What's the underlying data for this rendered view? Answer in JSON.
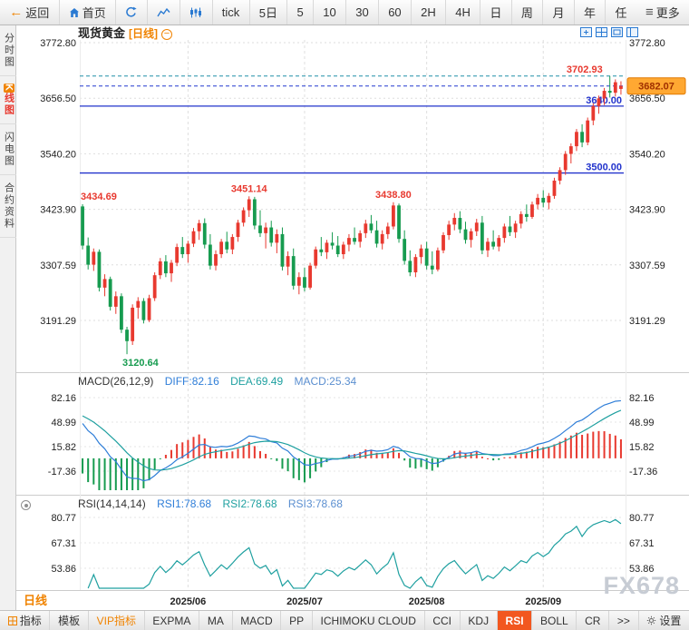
{
  "topbar": {
    "back_label": "返回",
    "home_label": "首页",
    "tick_label": "tick",
    "periods": [
      {
        "label": "5日",
        "key": "5d"
      },
      {
        "label": "5",
        "key": "5"
      },
      {
        "label": "10",
        "key": "10"
      },
      {
        "label": "30",
        "key": "30"
      },
      {
        "label": "60",
        "key": "60"
      },
      {
        "label": "2H",
        "key": "2h"
      },
      {
        "label": "4H",
        "key": "4h"
      },
      {
        "label": "日",
        "key": "day"
      },
      {
        "label": "周",
        "key": "week"
      },
      {
        "label": "月",
        "key": "month"
      },
      {
        "label": "年",
        "key": "year"
      },
      {
        "label": "任",
        "key": "custom"
      }
    ],
    "more_label": "更多"
  },
  "sidebar": {
    "items": [
      {
        "label": "分时图",
        "key": "time-chart",
        "active": false
      },
      {
        "label": "K线图",
        "key": "k-line-chart",
        "active": true
      },
      {
        "label": "闪电图",
        "key": "flash-chart",
        "active": false
      },
      {
        "label": "合约资料",
        "key": "contract-info",
        "active": false
      }
    ]
  },
  "chart_header": {
    "symbol": "现货黄金",
    "period_tag": "[日线]"
  },
  "macd_header": {
    "title": "MACD(26,12,9)",
    "diff": "DIFF:82.16",
    "dea": "DEA:69.49",
    "macd": "MACD:25.34"
  },
  "rsi_header": {
    "title": "RSI(14,14,14)",
    "rsi1": "RSI1:78.68",
    "rsi2": "RSI2:78.68",
    "rsi3": "RSI3:78.68"
  },
  "x_axis": {
    "period_tab": "日线"
  },
  "watermark": "FX678",
  "bottom_bar": {
    "items": [
      {
        "label": "指标",
        "key": "indicator",
        "style": "indicator"
      },
      {
        "label": "模板",
        "key": "template",
        "style": "normal"
      },
      {
        "label": "VIP指标",
        "key": "vip-indicator",
        "style": "vip"
      },
      {
        "label": "EXPMA",
        "key": "expma",
        "style": "normal"
      },
      {
        "label": "MA",
        "key": "ma",
        "style": "normal"
      },
      {
        "label": "MACD",
        "key": "macd",
        "style": "normal"
      },
      {
        "label": "PP",
        "key": "pp",
        "style": "normal"
      },
      {
        "label": "ICHIMOKU CLOUD",
        "key": "ichimoku-cloud",
        "style": "normal"
      },
      {
        "label": "CCI",
        "key": "cci",
        "style": "normal"
      },
      {
        "label": "KDJ",
        "key": "kdj",
        "style": "normal"
      },
      {
        "label": "RSI",
        "key": "rsi",
        "style": "active"
      },
      {
        "label": "BOLL",
        "key": "boll",
        "style": "normal"
      },
      {
        "label": "CR",
        "key": "cr",
        "style": "normal"
      },
      {
        "label": ">>",
        "key": "more-indicators",
        "style": "normal"
      },
      {
        "label": "设置",
        "key": "settings",
        "style": "settings"
      }
    ]
  },
  "colors": {
    "up": "#e8392f",
    "down": "#169b4f",
    "level_line": "#2233cc",
    "dashed_high": "#2090a8",
    "dashed_price": "#2238d0",
    "badge_bg": "#ffa832",
    "badge_border": "#e07800",
    "badge_text": "#a03000",
    "accent_orange": "#f08300",
    "diff_line": "#2f7ed8",
    "dea_line": "#1fa0a0"
  },
  "chart_data": {
    "type": "candlestick",
    "symbol": "现货黄金",
    "period": "日线",
    "y_ticks": [
      3772.8,
      3656.5,
      3540.2,
      3423.9,
      3307.59,
      3191.29
    ],
    "levels": [
      3640.0,
      3500.0
    ],
    "dashed_levels": [
      3702.93,
      3682.07
    ],
    "current_price": 3682.07,
    "month_ticks": [
      {
        "label": "2025/06",
        "index": 19
      },
      {
        "label": "2025/07",
        "index": 40
      },
      {
        "label": "2025/08",
        "index": 62
      },
      {
        "label": "2025/09",
        "index": 83
      }
    ],
    "annotations": [
      {
        "text": "3434.69",
        "index": 0,
        "price": 3434.69,
        "pos": "above-right",
        "color": "up"
      },
      {
        "text": "3120.64",
        "index": 8,
        "price": 3120.64,
        "pos": "below",
        "color": "down"
      },
      {
        "text": "3451.14",
        "index": 30,
        "price": 3451.14,
        "pos": "above",
        "color": "up"
      },
      {
        "text": "3438.80",
        "index": 56,
        "price": 3438.8,
        "pos": "above",
        "color": "up"
      },
      {
        "text": "3702.93",
        "index": 95,
        "price": 3702.93,
        "pos": "above-left",
        "color": "up"
      }
    ],
    "candles": [
      [
        3430,
        3434.69,
        3340,
        3348
      ],
      [
        3348,
        3365,
        3298,
        3308
      ],
      [
        3308,
        3342,
        3295,
        3335
      ],
      [
        3335,
        3340,
        3252,
        3260
      ],
      [
        3260,
        3288,
        3242,
        3278
      ],
      [
        3278,
        3283,
        3212,
        3220
      ],
      [
        3220,
        3252,
        3205,
        3242
      ],
      [
        3242,
        3248,
        3165,
        3172
      ],
      [
        3172,
        3178,
        3120.64,
        3148
      ],
      [
        3148,
        3225,
        3140,
        3218
      ],
      [
        3218,
        3240,
        3195,
        3232
      ],
      [
        3232,
        3238,
        3185,
        3192
      ],
      [
        3192,
        3245,
        3188,
        3238
      ],
      [
        3238,
        3292,
        3232,
        3286
      ],
      [
        3286,
        3322,
        3278,
        3315
      ],
      [
        3315,
        3328,
        3282,
        3290
      ],
      [
        3290,
        3318,
        3272,
        3312
      ],
      [
        3312,
        3352,
        3305,
        3345
      ],
      [
        3345,
        3366,
        3322,
        3330
      ],
      [
        3330,
        3358,
        3312,
        3352
      ],
      [
        3352,
        3385,
        3345,
        3378
      ],
      [
        3378,
        3402,
        3360,
        3395
      ],
      [
        3395,
        3405,
        3342,
        3350
      ],
      [
        3350,
        3372,
        3298,
        3306
      ],
      [
        3306,
        3338,
        3296,
        3330
      ],
      [
        3330,
        3362,
        3322,
        3356
      ],
      [
        3356,
        3377,
        3332,
        3340
      ],
      [
        3340,
        3372,
        3330,
        3366
      ],
      [
        3366,
        3402,
        3356,
        3396
      ],
      [
        3396,
        3428,
        3388,
        3422
      ],
      [
        3422,
        3451.14,
        3408,
        3445
      ],
      [
        3445,
        3450,
        3382,
        3390
      ],
      [
        3390,
        3422,
        3366,
        3374
      ],
      [
        3374,
        3396,
        3342,
        3386
      ],
      [
        3386,
        3400,
        3346,
        3354
      ],
      [
        3354,
        3382,
        3332,
        3372
      ],
      [
        3372,
        3386,
        3296,
        3304
      ],
      [
        3304,
        3336,
        3286,
        3326
      ],
      [
        3326,
        3342,
        3256,
        3264
      ],
      [
        3264,
        3292,
        3246,
        3282
      ],
      [
        3282,
        3302,
        3252,
        3260
      ],
      [
        3260,
        3312,
        3256,
        3306
      ],
      [
        3306,
        3346,
        3300,
        3340
      ],
      [
        3340,
        3366,
        3326,
        3334
      ],
      [
        3334,
        3360,
        3320,
        3354
      ],
      [
        3354,
        3376,
        3340,
        3348
      ],
      [
        3348,
        3368,
        3324,
        3330
      ],
      [
        3330,
        3356,
        3320,
        3350
      ],
      [
        3350,
        3372,
        3336,
        3364
      ],
      [
        3364,
        3386,
        3350,
        3356
      ],
      [
        3356,
        3380,
        3344,
        3374
      ],
      [
        3374,
        3402,
        3364,
        3394
      ],
      [
        3394,
        3412,
        3374,
        3380
      ],
      [
        3380,
        3400,
        3344,
        3352
      ],
      [
        3352,
        3380,
        3340,
        3372
      ],
      [
        3372,
        3396,
        3362,
        3388
      ],
      [
        3388,
        3438.8,
        3382,
        3432
      ],
      [
        3432,
        3436,
        3354,
        3362
      ],
      [
        3362,
        3380,
        3308,
        3316
      ],
      [
        3316,
        3338,
        3284,
        3292
      ],
      [
        3292,
        3330,
        3282,
        3324
      ],
      [
        3324,
        3350,
        3310,
        3342
      ],
      [
        3342,
        3356,
        3298,
        3306
      ],
      [
        3306,
        3336,
        3288,
        3298
      ],
      [
        3298,
        3344,
        3294,
        3338
      ],
      [
        3338,
        3376,
        3332,
        3370
      ],
      [
        3370,
        3400,
        3360,
        3392
      ],
      [
        3392,
        3416,
        3380,
        3406
      ],
      [
        3406,
        3420,
        3374,
        3382
      ],
      [
        3382,
        3398,
        3352,
        3360
      ],
      [
        3360,
        3384,
        3344,
        3378
      ],
      [
        3378,
        3404,
        3368,
        3396
      ],
      [
        3396,
        3410,
        3330,
        3338
      ],
      [
        3338,
        3364,
        3324,
        3356
      ],
      [
        3356,
        3380,
        3340,
        3346
      ],
      [
        3346,
        3370,
        3336,
        3364
      ],
      [
        3364,
        3394,
        3354,
        3388
      ],
      [
        3388,
        3410,
        3368,
        3376
      ],
      [
        3376,
        3400,
        3364,
        3394
      ],
      [
        3394,
        3420,
        3384,
        3414
      ],
      [
        3414,
        3434,
        3398,
        3408
      ],
      [
        3408,
        3440,
        3404,
        3434
      ],
      [
        3434,
        3456,
        3424,
        3448
      ],
      [
        3448,
        3464,
        3428,
        3438
      ],
      [
        3438,
        3458,
        3424,
        3452
      ],
      [
        3452,
        3490,
        3446,
        3484
      ],
      [
        3484,
        3512,
        3476,
        3506
      ],
      [
        3506,
        3546,
        3496,
        3540
      ],
      [
        3540,
        3562,
        3520,
        3556
      ],
      [
        3556,
        3592,
        3546,
        3586
      ],
      [
        3586,
        3602,
        3554,
        3564
      ],
      [
        3564,
        3616,
        3558,
        3610
      ],
      [
        3610,
        3646,
        3600,
        3640
      ],
      [
        3640,
        3662,
        3624,
        3656
      ],
      [
        3656,
        3678,
        3642,
        3672
      ],
      [
        3672,
        3702.93,
        3658,
        3668
      ],
      [
        3668,
        3696,
        3660,
        3690
      ],
      [
        3676,
        3692,
        3664,
        3682.07
      ]
    ],
    "macd": {
      "params": [
        26,
        12,
        9
      ],
      "diff": 82.16,
      "dea": 69.49,
      "macd": 25.34,
      "y_ticks": [
        82.16,
        48.99,
        15.82,
        -17.36
      ]
    },
    "rsi": {
      "params": [
        14,
        14,
        14
      ],
      "rsi1": 78.68,
      "rsi2": 78.68,
      "rsi3": 78.68,
      "y_ticks": [
        80.77,
        67.31,
        53.86
      ]
    }
  }
}
